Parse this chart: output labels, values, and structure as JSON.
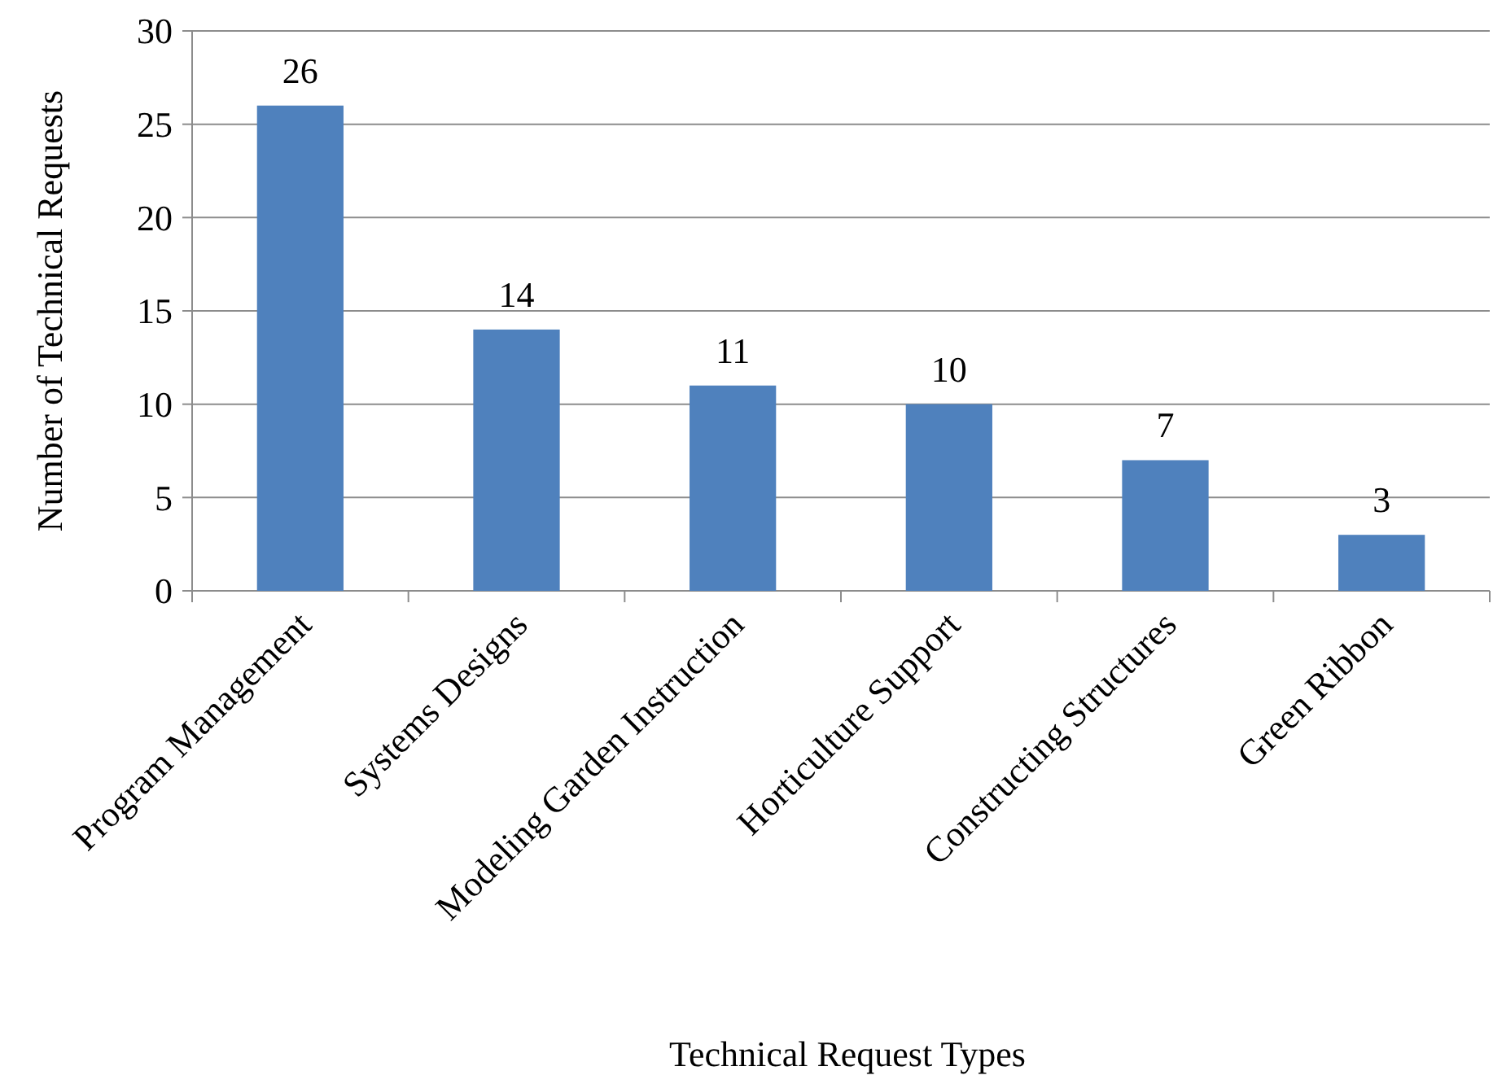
{
  "chart_data": {
    "type": "bar",
    "xlabel": "Technical Request Types",
    "ylabel": "Number of Technical Requests",
    "categories": [
      "Program Management",
      "Systems Designs",
      "Modeling Garden Instruction",
      "Horticulture Support",
      "Constructing Structures",
      "Green Ribbon"
    ],
    "values": [
      26,
      14,
      11,
      10,
      7,
      3
    ],
    "color": "#4f81bd",
    "ylim": [
      0,
      30
    ],
    "yticks": [
      0,
      5,
      10,
      15,
      20,
      25,
      30
    ],
    "grid": "y",
    "data_labels": true
  }
}
